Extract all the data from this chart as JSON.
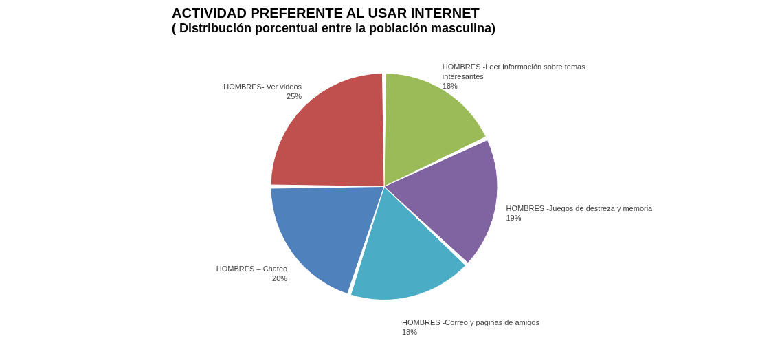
{
  "chart_data": {
    "type": "pie",
    "title": "ACTIVIDAD PREFERENTE AL USAR INTERNET",
    "subtitle": "( Distribución porcentual entre la población masculina)",
    "categories": [
      "HOMBRES -Leer información sobre temas interesantes",
      "HOMBRES -Juegos de destreza y memoria",
      "HOMBRES -Correo y páginas de amigos",
      "HOMBRES –  Chateo",
      "HOMBRES- Ver videos"
    ],
    "values": [
      18,
      19,
      18,
      20,
      25
    ],
    "colors": [
      "#9bbb59",
      "#8064a2",
      "#4bacc6",
      "#4f81bd",
      "#c0504d"
    ],
    "value_labels": [
      "18%",
      "19%",
      "18%",
      "20%",
      "25%"
    ],
    "legend": false
  }
}
